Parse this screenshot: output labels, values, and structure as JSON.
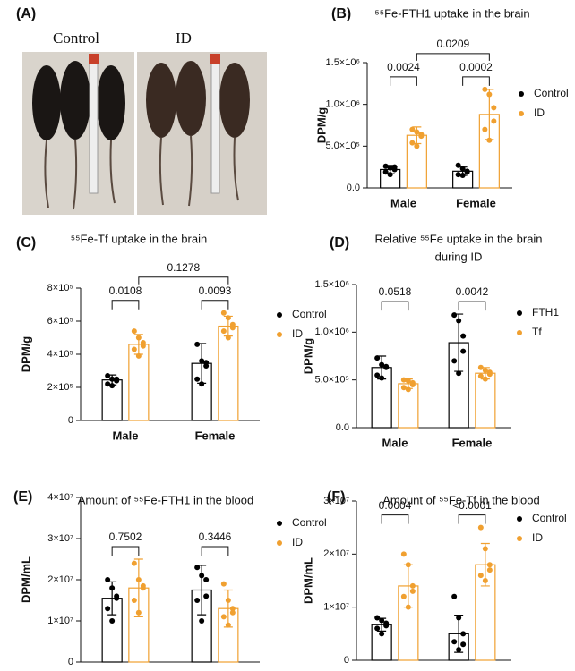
{
  "panel_a": {
    "label": "(A)",
    "captions": [
      "Control",
      "ID"
    ]
  },
  "chart_data": [
    {
      "type": "bar",
      "label": "(B)",
      "title": "⁵⁵Fe-FTH1 uptake in the brain",
      "y_label": "DPM/g",
      "categories": [
        "Male",
        "Female"
      ],
      "series": [
        {
          "name": "Control",
          "color": "#000000",
          "values": [
            220000,
            200000
          ],
          "errors": [
            50000,
            50000
          ],
          "points": [
            [
              260000,
              240000,
              220000,
              190000,
              160000,
              250000
            ],
            [
              270000,
              230000,
              190000,
              160000,
              150000,
              200000
            ]
          ]
        },
        {
          "name": "ID",
          "color": "#f0a030",
          "values": [
            630000,
            880000
          ],
          "errors": [
            100000,
            300000
          ],
          "points": [
            [
              700000,
              670000,
              620000,
              540000,
              500000,
              640000
            ],
            [
              1180000,
              1120000,
              960000,
              700000,
              570000,
              800000
            ]
          ]
        }
      ],
      "comparisons": {
        "within": [
          "0.0024",
          "0.0002"
        ],
        "between": "0.0209"
      },
      "ylim": [
        0,
        1500000
      ],
      "yticks": [
        {
          "value": 0,
          "label": "0.0"
        },
        {
          "value": 500000,
          "label": "5.0×10⁵"
        },
        {
          "value": 1000000,
          "label": "1.0×10⁶"
        },
        {
          "value": 1500000,
          "label": "1.5×10⁶"
        }
      ]
    },
    {
      "type": "bar",
      "label": "(C)",
      "title": "⁵⁵Fe-Tf uptake in the brain",
      "y_label": "DPM/g",
      "categories": [
        "Male",
        "Female"
      ],
      "series": [
        {
          "name": "Control",
          "color": "#000000",
          "values": [
            245000,
            345000
          ],
          "errors": [
            30000,
            120000
          ],
          "points": [
            [
              270000,
              250000,
              240000,
              220000,
              210000,
              250000
            ],
            [
              460000,
              360000,
              330000,
              250000,
              220000,
              350000
            ]
          ]
        },
        {
          "name": "ID",
          "color": "#f0a030",
          "values": [
            460000,
            570000
          ],
          "errors": [
            60000,
            60000
          ],
          "points": [
            [
              540000,
              500000,
              450000,
              430000,
              390000,
              470000
            ],
            [
              650000,
              620000,
              580000,
              540000,
              500000,
              560000
            ]
          ]
        }
      ],
      "comparisons": {
        "within": [
          "0.0108",
          "0.0093"
        ],
        "between": "0.1278"
      },
      "ylim": [
        0,
        800000
      ],
      "yticks": [
        0,
        {
          "value": 200000,
          "label": "2×10⁵"
        },
        {
          "value": 400000,
          "label": "4×10⁵"
        },
        {
          "value": 600000,
          "label": "6×10⁵"
        },
        {
          "value": 800000,
          "label": "8×10⁵"
        }
      ]
    },
    {
      "type": "bar",
      "label": "(D)",
      "title": [
        "Relative ⁵⁵Fe uptake in the brain",
        "during ID"
      ],
      "y_label": "DPM/g",
      "categories": [
        "Male",
        "Female"
      ],
      "series": [
        {
          "name": "FTH1",
          "color": "#000000",
          "values": [
            630000,
            890000
          ],
          "errors": [
            120000,
            300000
          ],
          "points": [
            [
              730000,
              660000,
              630000,
              550000,
              520000,
              640000
            ],
            [
              1180000,
              1120000,
              960000,
              700000,
              570000,
              800000
            ]
          ]
        },
        {
          "name": "Tf",
          "color": "#f0a030",
          "values": [
            460000,
            570000
          ],
          "errors": [
            50000,
            60000
          ],
          "points": [
            [
              500000,
              490000,
              450000,
              420000,
              400000,
              470000
            ],
            [
              630000,
              600000,
              580000,
              540000,
              510000,
              560000
            ]
          ]
        }
      ],
      "comparisons": {
        "within": [
          "0.0518",
          "0.0042"
        ]
      },
      "ylim": [
        0,
        1500000
      ],
      "yticks": [
        {
          "value": 0,
          "label": "0.0"
        },
        {
          "value": 500000,
          "label": "5.0×10⁵"
        },
        {
          "value": 1000000,
          "label": "1.0×10⁶"
        },
        {
          "value": 1500000,
          "label": "1.5×10⁶"
        }
      ]
    },
    {
      "type": "bar",
      "label": "(E)",
      "title": "Amount of ⁵⁵Fe-FTH1 in the blood",
      "y_label": "DPM/mL",
      "categories": [
        "Male",
        "Female"
      ],
      "series": [
        {
          "name": "Control",
          "color": "#000000",
          "values": [
            15500000,
            17500000
          ],
          "errors": [
            4000000,
            6000000
          ],
          "points": [
            [
              20000000,
              18000000,
              15500000,
              13000000,
              10000000,
              16000000
            ],
            [
              23000000,
              21000000,
              20000000,
              15000000,
              10000000,
              16000000
            ]
          ]
        },
        {
          "name": "ID",
          "color": "#f0a030",
          "values": [
            18000000,
            13000000
          ],
          "errors": [
            7000000,
            4500000
          ],
          "points": [
            [
              24000000,
              20000000,
              18000000,
              15000000,
              12000000,
              18500000
            ],
            [
              19000000,
              15000000,
              13000000,
              11000000,
              9000000,
              12000000
            ]
          ]
        }
      ],
      "comparisons": {
        "within": [
          "0.7502",
          "0.3446"
        ]
      },
      "ylim": [
        0,
        40000000
      ],
      "yticks": [
        0,
        {
          "value": 10000000,
          "label": "1×10⁷"
        },
        {
          "value": 20000000,
          "label": "2×10⁷"
        },
        {
          "value": 30000000,
          "label": "3×10⁷"
        },
        {
          "value": 40000000,
          "label": "4×10⁷"
        }
      ]
    },
    {
      "type": "bar",
      "label": "(F)",
      "title": "Amount of ⁵⁵Fe-Tf in the blood",
      "y_label": "DPM/mL",
      "categories": [
        "Male",
        "Female"
      ],
      "series": [
        {
          "name": "Control",
          "color": "#000000",
          "values": [
            6700000,
            5000000
          ],
          "errors": [
            1200000,
            3500000
          ],
          "points": [
            [
              8000000,
              7500000,
              7000000,
              6000000,
              5000000,
              6500000
            ],
            [
              12000000,
              8000000,
              5000000,
              3500000,
              2000000,
              3000000
            ]
          ]
        },
        {
          "name": "ID",
          "color": "#f0a030",
          "values": [
            14000000,
            18000000
          ],
          "errors": [
            4000000,
            4000000
          ],
          "points": [
            [
              20000000,
              18000000,
              14000000,
              12000000,
              10000000,
              13000000
            ],
            [
              25000000,
              21000000,
              18000000,
              16000000,
              15000000,
              17000000
            ]
          ]
        }
      ],
      "comparisons": {
        "within": [
          "0.0004",
          "<0.0001"
        ]
      },
      "ylim": [
        0,
        30000000
      ],
      "yticks": [
        0,
        {
          "value": 10000000,
          "label": "1×10⁷"
        },
        {
          "value": 20000000,
          "label": "2×10⁷"
        },
        {
          "value": 30000000,
          "label": "3×10⁷"
        }
      ]
    }
  ]
}
